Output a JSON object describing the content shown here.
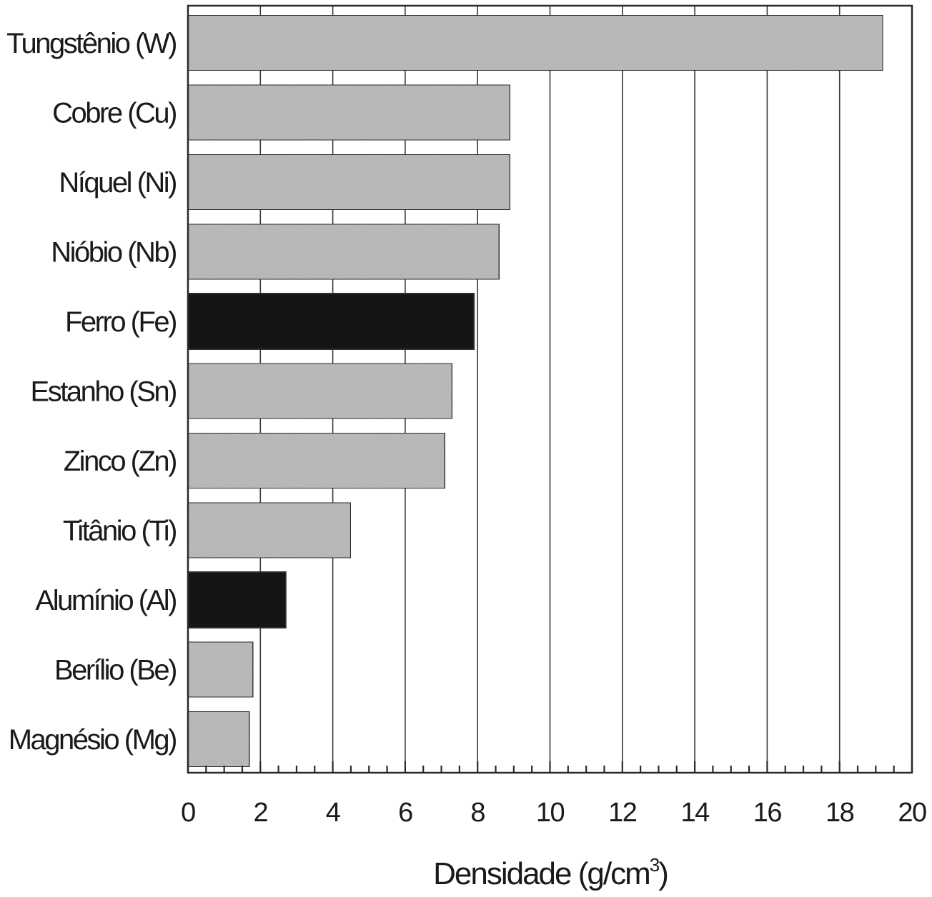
{
  "chart_data": {
    "type": "bar",
    "orientation": "horizontal",
    "categories": [
      "Tungstênio (W)",
      "Cobre (Cu)",
      "Níquel (Ni)",
      "Nióbio (Nb)",
      "Ferro (Fe)",
      "Estanho (Sn)",
      "Zinco (Zn)",
      "Titânio (Ti)",
      "Alumínio (Al)",
      "Berílio (Be)",
      "Magnésio (Mg)"
    ],
    "values": [
      19.2,
      8.9,
      8.9,
      8.6,
      7.9,
      7.3,
      7.1,
      4.5,
      2.7,
      1.8,
      1.7
    ],
    "highlighted": [
      "Ferro (Fe)",
      "Alumínio (Al)"
    ],
    "title": "",
    "xlabel": "Densidade (g/cm",
    "xlabel_superscript": "3",
    "xlabel_close": ")",
    "ylabel": "",
    "xlim": [
      0,
      20
    ],
    "xticks": [
      0,
      2,
      4,
      6,
      8,
      10,
      12,
      14,
      16,
      18,
      20
    ],
    "minor_tick_step": 0.5,
    "grid": "vertical",
    "legend": "none",
    "colors": {
      "bar_fill": "#c4c4c4",
      "highlight_fill": "#151515",
      "frame": "#2a2a2a",
      "background": "#ffffff"
    }
  }
}
